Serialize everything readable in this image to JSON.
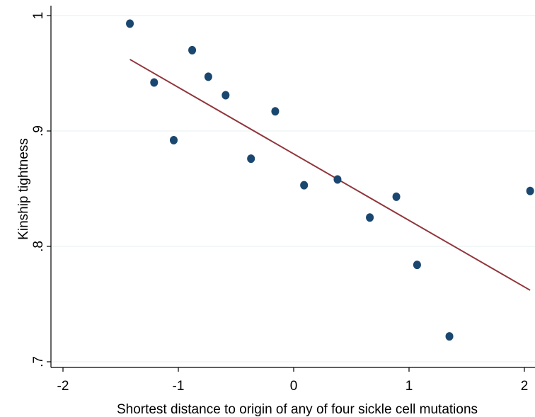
{
  "chart_data": {
    "type": "scatter",
    "xlabel": "Shortest distance to origin of any of four sickle cell mutations",
    "ylabel": "Kinship tightness",
    "xlim": [
      -2.0,
      2.05
    ],
    "ylim": [
      0.7,
      1.0
    ],
    "x_ticks": [
      -2,
      -1,
      0,
      1,
      2
    ],
    "x_tick_labels": [
      "-2",
      "-1",
      "0",
      "1",
      "2"
    ],
    "y_ticks": [
      0.7,
      0.8,
      0.9,
      1.0
    ],
    "y_tick_labels": [
      ".7",
      ".8",
      ".9",
      "1"
    ],
    "grid": "horizontal",
    "legend": "none",
    "point_color": "#1a476f",
    "fit_line_color": "#90353b",
    "points": [
      {
        "x": -1.42,
        "y": 0.993
      },
      {
        "x": -1.21,
        "y": 0.942
      },
      {
        "x": -1.04,
        "y": 0.892
      },
      {
        "x": -0.88,
        "y": 0.97
      },
      {
        "x": -0.74,
        "y": 0.947
      },
      {
        "x": -0.59,
        "y": 0.931
      },
      {
        "x": -0.37,
        "y": 0.876
      },
      {
        "x": -0.16,
        "y": 0.917
      },
      {
        "x": 0.09,
        "y": 0.853
      },
      {
        "x": 0.38,
        "y": 0.858
      },
      {
        "x": 0.66,
        "y": 0.825
      },
      {
        "x": 0.89,
        "y": 0.843
      },
      {
        "x": 1.07,
        "y": 0.784
      },
      {
        "x": 1.35,
        "y": 0.722
      },
      {
        "x": 2.05,
        "y": 0.848
      }
    ],
    "fit_line": {
      "x": [
        -1.42,
        2.05
      ],
      "y": [
        0.962,
        0.762
      ]
    }
  }
}
